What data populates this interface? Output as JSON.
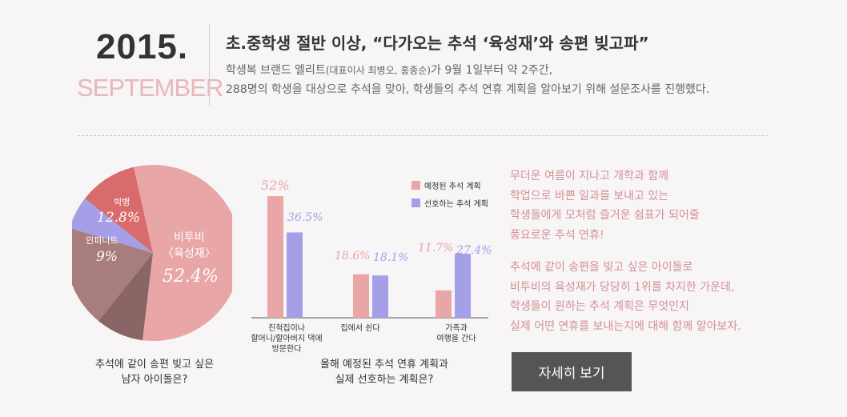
{
  "header": {
    "year": "2015.",
    "month": "SEPTEMBER",
    "headline": "초.중학생 절반 이상, “다가오는 추석 ‘육성재’와 송편 빚고파”",
    "desc_line1_a": "학생복 브랜드 엘리트",
    "desc_line1_small": "(대표이사 최병오, 홍종순)",
    "desc_line1_b": "가 9월 1일부터 약 2주간,",
    "desc_line2": "288명의 학생을 대상으로 추석을 맞아, 학생들의 추석 연휴 계획을 알아보기 위해 설문조사를 진행했다."
  },
  "pie": {
    "caption_line1": "추석에 같이 송편 빚고 싶은",
    "caption_line2": "남자 아이돌은?",
    "label_big_name1": "비투비",
    "label_big_name2": "〈육성재〉",
    "label_big_pct": "52.4%",
    "label_bigbang": "빅뱅",
    "label_bigbang_pct": "12.8%",
    "label_infinite": "인피니트",
    "label_infinite_pct": "9%"
  },
  "bar": {
    "caption_line1": "올해 예정된 추석 연휴 계획과",
    "caption_line2": "실제 선호하는 계획은?",
    "legend_planned": "예정된 추석 계획",
    "legend_preferred": "선호하는 추석 계획",
    "cat1_l1": "친척집이나",
    "cat1_l2": "할머니/할아버지 댁에",
    "cat1_l3": "방문한다",
    "cat2": "집에서 쉰다",
    "cat3_l1": "가족과",
    "cat3_l2": "여행을 간다",
    "val1a": "52%",
    "val1b": "36.5%",
    "val2a": "18.6%",
    "val2b": "18.1%",
    "val3a": "11.7%",
    "val3b": "27.4%"
  },
  "text": {
    "p1_l1": "무더운 여름이 지나고 개학과 함께",
    "p1_l2": "학업으로 바쁜 일과를 보내고 있는",
    "p1_l3": "학생들에게 모처럼 즐거운 쉼표가 되어줄",
    "p1_l4": "풍요로운 추석 연휴!",
    "p2_l1": "추석에 같이 송편을 빚고 싶은 아이돌로",
    "p2_l2": "비투비의 육성재가 당당히 1위를 차지한 가운데,",
    "p2_l3": "학생들이 원하는 추석 계획은 무엇인지",
    "p2_l4": "실제 어떤 연휴를 보내는지에 대해 함께 알아보자."
  },
  "button": {
    "label": "자세히 보기"
  },
  "colors": {
    "pink": "#e8a6a6",
    "red": "#d96b6d",
    "lavender": "#a59fe8",
    "mauve": "#a87d7e",
    "dark_mauve": "#8a6566",
    "text_pink": "#d49095"
  },
  "chart_data": [
    {
      "type": "pie",
      "labels": [
        "비투비 〈육성재〉",
        "빅뱅",
        "인피니트",
        "",
        ""
      ],
      "values": [
        52.4,
        12.8,
        9,
        17.8,
        8
      ]
    },
    {
      "type": "bar",
      "categories": [
        "친척집이나 할머니/할아버지 댁에 방문한다",
        "집에서 쉰다",
        "가족과 여행을 간다"
      ],
      "series": [
        {
          "name": "예정된 추석 계획",
          "values": [
            52,
            18.6,
            11.7
          ]
        },
        {
          "name": "선호하는 추석 계획",
          "values": [
            36.5,
            18.1,
            27.4
          ]
        }
      ]
    }
  ]
}
